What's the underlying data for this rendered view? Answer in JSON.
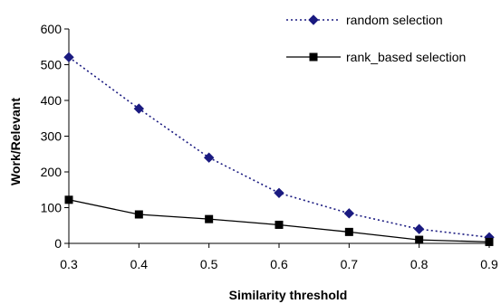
{
  "chart_data": {
    "type": "line",
    "title": "",
    "xlabel": "Similarity threshold",
    "ylabel": "Work/Relevant",
    "x": [
      0.3,
      0.4,
      0.5,
      0.6,
      0.7,
      0.8,
      0.9
    ],
    "x_tick_labels": [
      "0.3",
      "0.4",
      "0.5",
      "0.6",
      "0.7",
      "0.8",
      "0.9"
    ],
    "y_tick_labels": [
      "0",
      "100",
      "200",
      "300",
      "400",
      "500",
      "600"
    ],
    "xlim": [
      0.3,
      0.9
    ],
    "ylim": [
      0,
      600
    ],
    "grid": false,
    "legend_position": "top-right",
    "series": [
      {
        "name": "random selection",
        "values": [
          521,
          377,
          240,
          141,
          84,
          40,
          17
        ],
        "color": "#1a1a80",
        "line_style": "dotted",
        "marker": "diamond"
      },
      {
        "name": "rank_based selection",
        "values": [
          122,
          81,
          68,
          52,
          32,
          10,
          4
        ],
        "color": "#000000",
        "line_style": "solid",
        "marker": "square"
      }
    ]
  }
}
